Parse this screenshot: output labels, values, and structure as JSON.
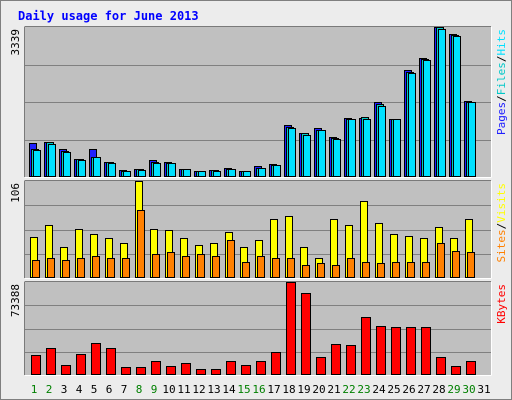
{
  "chart_data": [
    {
      "type": "bar",
      "title": "Daily usage for June 2013",
      "max_label": "3339",
      "ylim": [
        0,
        3339
      ],
      "grid": true,
      "categories": [
        "1",
        "2",
        "3",
        "4",
        "5",
        "6",
        "7",
        "8",
        "9",
        "10",
        "11",
        "12",
        "13",
        "14",
        "15",
        "16",
        "17",
        "18",
        "19",
        "20",
        "21",
        "22",
        "23",
        "24",
        "25",
        "26",
        "27",
        "28",
        "29",
        "30",
        "31"
      ],
      "series": [
        {
          "name": "Pages",
          "color": "#2020ff",
          "values": [
            760,
            790,
            620,
            400,
            620,
            330,
            150,
            170,
            380,
            340,
            180,
            140,
            150,
            200,
            140,
            240,
            280,
            1150,
            970,
            1080,
            890,
            1320,
            1320,
            1660,
            1300,
            2380,
            2640,
            3339,
            3180,
            1700,
            0
          ]
        },
        {
          "name": "Files",
          "color": "#00c8c8",
          "values": [
            630,
            770,
            570,
            400,
            450,
            330,
            140,
            170,
            330,
            320,
            180,
            140,
            150,
            180,
            140,
            200,
            270,
            1110,
            970,
            1050,
            860,
            1300,
            1330,
            1620,
            1300,
            2340,
            2620,
            3339,
            3170,
            1670,
            0
          ]
        },
        {
          "name": "Hits",
          "color": "#00e0ff",
          "values": [
            590,
            730,
            560,
            380,
            440,
            320,
            130,
            160,
            310,
            310,
            170,
            130,
            140,
            180,
            130,
            200,
            260,
            1080,
            940,
            1040,
            840,
            1280,
            1300,
            1580,
            1280,
            2310,
            2600,
            3300,
            3140,
            1660,
            0
          ]
        }
      ],
      "legend": [
        "Pages",
        "/",
        "Files",
        "/",
        "Hits"
      ]
    },
    {
      "type": "bar",
      "max_label": "106",
      "ylim": [
        0,
        106
      ],
      "grid": true,
      "categories": [
        "1",
        "2",
        "3",
        "4",
        "5",
        "6",
        "7",
        "8",
        "9",
        "10",
        "11",
        "12",
        "13",
        "14",
        "15",
        "16",
        "17",
        "18",
        "19",
        "20",
        "21",
        "22",
        "23",
        "24",
        "25",
        "26",
        "27",
        "28",
        "29",
        "30",
        "31"
      ],
      "series": [
        {
          "name": "Visits",
          "color": "#ffff00",
          "values": [
            45,
            58,
            34,
            54,
            48,
            44,
            38,
            106,
            54,
            52,
            44,
            36,
            38,
            50,
            34,
            42,
            64,
            68,
            34,
            22,
            64,
            58,
            84,
            60,
            48,
            46,
            44,
            56,
            44,
            64,
            0
          ]
        },
        {
          "name": "Sites",
          "color": "#ff8000",
          "values": [
            20,
            22,
            20,
            22,
            24,
            22,
            22,
            74,
            26,
            28,
            24,
            26,
            24,
            42,
            18,
            24,
            22,
            22,
            14,
            16,
            14,
            22,
            18,
            16,
            18,
            18,
            18,
            38,
            30,
            28,
            0
          ]
        }
      ],
      "legend": [
        "Sites",
        "/",
        "Visits"
      ]
    },
    {
      "type": "bar",
      "max_label": "73388",
      "ylim": [
        0,
        73388
      ],
      "grid": true,
      "categories": [
        "1",
        "2",
        "3",
        "4",
        "5",
        "6",
        "7",
        "8",
        "9",
        "10",
        "11",
        "12",
        "13",
        "14",
        "15",
        "16",
        "17",
        "18",
        "19",
        "20",
        "21",
        "22",
        "23",
        "24",
        "25",
        "26",
        "27",
        "28",
        "29",
        "30",
        "31"
      ],
      "series": [
        {
          "name": "KBytes",
          "color": "#ff0000",
          "values": [
            15500,
            21000,
            8000,
            16400,
            25200,
            21000,
            6500,
            6500,
            11400,
            7200,
            9600,
            5000,
            4800,
            11200,
            8000,
            11400,
            18200,
            73388,
            64800,
            14200,
            24500,
            23600,
            45800,
            38800,
            38200,
            38200,
            38200,
            14400,
            7400,
            10800,
            0
          ]
        }
      ],
      "legend": [
        "KBytes"
      ]
    }
  ],
  "weekend_days": [
    "1",
    "2",
    "8",
    "9",
    "15",
    "16",
    "22",
    "23",
    "29",
    "30"
  ],
  "colors": {
    "background": "#ececec",
    "plot_bg": "#c0c0c0",
    "title": "#0000ff",
    "weekday_label": "#000000",
    "weekend_label": "#008000"
  }
}
